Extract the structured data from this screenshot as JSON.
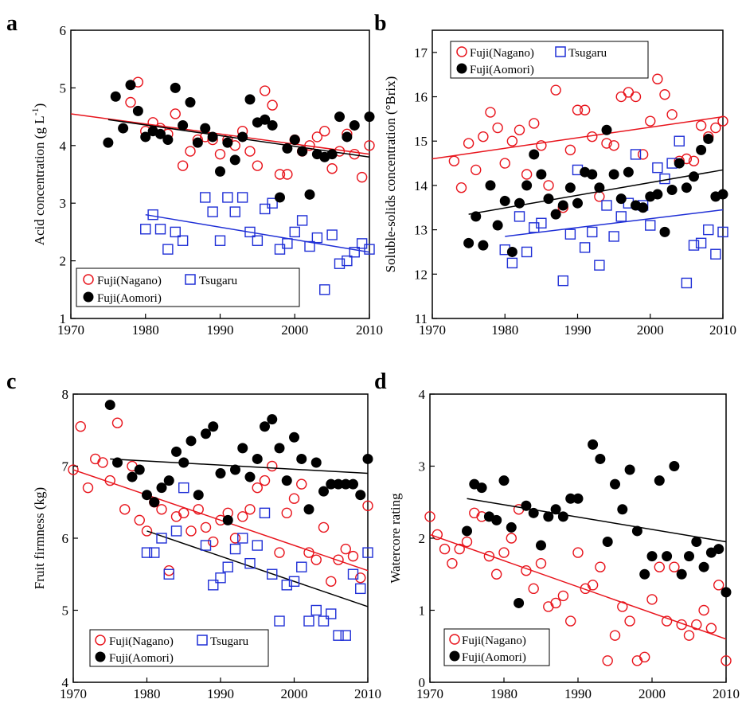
{
  "colors": {
    "nagano": "#e8141c",
    "tsugaru": "#1f2fd6",
    "aomori": "#000000",
    "trend_black": "#000000"
  },
  "chart_data": [
    {
      "panel": "a",
      "type": "scatter",
      "ylabel": "Acid concentration (g L",
      "ylabel_sup": "-1",
      "ylabel_close": ")",
      "xlim": [
        1970,
        2010
      ],
      "ylim": [
        1,
        6
      ],
      "xticks": [
        "1970",
        "1980",
        "1990",
        "2000",
        "2010"
      ],
      "yticks": [
        "1",
        "2",
        "3",
        "4",
        "5",
        "6"
      ],
      "legend": {
        "entries": [
          "Fuji(Nagano)",
          "Tsugaru",
          "Fuji(Aomori)"
        ],
        "placement": "bottom-left"
      },
      "series": [
        {
          "name": "Fuji(Nagano)",
          "marker": "open-circle",
          "color": "#e8141c",
          "x": [
            1978,
            1979,
            1980,
            1981,
            1982,
            1983,
            1984,
            1985,
            1986,
            1987,
            1988,
            1989,
            1990,
            1991,
            1992,
            1993,
            1994,
            1995,
            1996,
            1997,
            1998,
            1999,
            2000,
            2001,
            2002,
            2003,
            2004,
            2005,
            2006,
            2007,
            2008,
            2009,
            2010
          ],
          "y": [
            4.75,
            5.1,
            4.25,
            4.4,
            4.3,
            4.2,
            4.55,
            3.65,
            3.9,
            4.1,
            4.15,
            4.1,
            3.85,
            4.1,
            4.0,
            4.25,
            3.9,
            3.65,
            4.95,
            4.7,
            3.5,
            3.5,
            4.1,
            3.9,
            4.0,
            4.15,
            4.25,
            3.6,
            3.9,
            4.2,
            3.85,
            3.45,
            4.0
          ],
          "trend": [
            [
              1970,
              4.55
            ],
            [
              2010,
              3.85
            ]
          ]
        },
        {
          "name": "Tsugaru",
          "marker": "open-square",
          "color": "#1f2fd6",
          "x": [
            1980,
            1981,
            1982,
            1983,
            1984,
            1985,
            1988,
            1989,
            1990,
            1991,
            1992,
            1993,
            1994,
            1995,
            1996,
            1997,
            1998,
            1999,
            2000,
            2001,
            2002,
            2003,
            2004,
            2005,
            2006,
            2007,
            2008,
            2009,
            2010
          ],
          "y": [
            2.55,
            2.8,
            2.55,
            2.2,
            2.5,
            2.35,
            3.1,
            2.85,
            2.35,
            3.1,
            2.85,
            3.1,
            2.5,
            2.35,
            2.9,
            3.0,
            2.2,
            2.3,
            2.5,
            2.7,
            2.25,
            2.4,
            1.5,
            2.45,
            1.95,
            2.0,
            2.15,
            2.3,
            2.2
          ],
          "trend": [
            [
              1980,
              2.8
            ],
            [
              2010,
              2.15
            ]
          ]
        },
        {
          "name": "Fuji(Aomori)",
          "marker": "filled-circle",
          "color": "#000000",
          "x": [
            1975,
            1976,
            1977,
            1978,
            1979,
            1980,
            1981,
            1982,
            1983,
            1984,
            1985,
            1986,
            1987,
            1988,
            1989,
            1990,
            1991,
            1992,
            1993,
            1994,
            1995,
            1996,
            1997,
            1998,
            1999,
            2000,
            2001,
            2002,
            2003,
            2004,
            2005,
            2006,
            2007,
            2008,
            2010
          ],
          "y": [
            4.05,
            4.85,
            4.3,
            5.05,
            4.6,
            4.15,
            4.25,
            4.2,
            4.1,
            5.0,
            4.35,
            4.75,
            4.05,
            4.3,
            4.15,
            3.55,
            4.05,
            3.75,
            4.15,
            4.8,
            4.4,
            4.45,
            4.35,
            3.1,
            3.95,
            4.1,
            3.9,
            3.15,
            3.85,
            3.8,
            3.85,
            4.5,
            4.15,
            4.35,
            4.5
          ],
          "trend": [
            [
              1975,
              4.45
            ],
            [
              2010,
              3.8
            ]
          ]
        }
      ]
    },
    {
      "panel": "b",
      "type": "scatter",
      "ylabel": "Soluble-solids concentration (°Brix)",
      "xlim": [
        1970,
        2010
      ],
      "ylim": [
        11,
        17.5
      ],
      "xticks": [
        "1970",
        "1980",
        "1990",
        "2000",
        "2010"
      ],
      "yticks": [
        "11",
        "12",
        "13",
        "14",
        "15",
        "16",
        "17"
      ],
      "legend": {
        "entries": [
          "Fuji(Nagano)",
          "Tsugaru",
          "Fuji(Aomori)"
        ],
        "placement": "top-left"
      },
      "series": [
        {
          "name": "Fuji(Nagano)",
          "marker": "open-circle",
          "color": "#e8141c",
          "x": [
            1973,
            1974,
            1975,
            1976,
            1977,
            1978,
            1979,
            1980,
            1981,
            1982,
            1983,
            1984,
            1985,
            1986,
            1987,
            1988,
            1989,
            1990,
            1991,
            1992,
            1993,
            1994,
            1995,
            1996,
            1997,
            1998,
            1999,
            2000,
            2001,
            2002,
            2003,
            2004,
            2005,
            2006,
            2007,
            2008,
            2009,
            2010
          ],
          "y": [
            14.55,
            13.95,
            14.95,
            14.35,
            15.1,
            15.65,
            15.3,
            14.5,
            15.0,
            15.25,
            14.25,
            15.4,
            14.9,
            14.0,
            16.15,
            13.5,
            14.8,
            15.7,
            15.7,
            15.1,
            13.75,
            14.95,
            14.9,
            16.0,
            16.1,
            16.0,
            14.7,
            15.45,
            16.4,
            16.05,
            15.6,
            14.55,
            14.6,
            14.55,
            15.35,
            15.1,
            15.3,
            15.45
          ],
          "trend": [
            [
              1970,
              14.6
            ],
            [
              2010,
              15.55
            ]
          ]
        },
        {
          "name": "Tsugaru",
          "marker": "open-square",
          "color": "#1f2fd6",
          "x": [
            1980,
            1981,
            1982,
            1983,
            1984,
            1985,
            1988,
            1989,
            1990,
            1991,
            1992,
            1993,
            1994,
            1995,
            1996,
            1997,
            1998,
            1999,
            2000,
            2001,
            2002,
            2003,
            2004,
            2005,
            2006,
            2007,
            2008,
            2009,
            2010
          ],
          "y": [
            12.55,
            12.25,
            13.3,
            12.5,
            13.05,
            13.15,
            11.85,
            12.9,
            14.35,
            12.6,
            12.95,
            12.2,
            13.55,
            12.85,
            13.3,
            13.6,
            14.7,
            13.55,
            13.1,
            14.4,
            14.15,
            14.5,
            15.0,
            11.8,
            12.65,
            12.7,
            13.0,
            12.45,
            12.95
          ],
          "trend": [
            [
              1980,
              12.85
            ],
            [
              2010,
              13.45
            ]
          ]
        },
        {
          "name": "Fuji(Aomori)",
          "marker": "filled-circle",
          "color": "#000000",
          "x": [
            1975,
            1976,
            1977,
            1978,
            1979,
            1980,
            1981,
            1982,
            1983,
            1984,
            1985,
            1986,
            1987,
            1988,
            1989,
            1990,
            1991,
            1992,
            1993,
            1994,
            1995,
            1996,
            1997,
            1998,
            1999,
            2000,
            2001,
            2002,
            2003,
            2004,
            2005,
            2006,
            2007,
            2008,
            2009,
            2010
          ],
          "y": [
            12.7,
            13.3,
            12.65,
            14.0,
            13.1,
            13.65,
            12.5,
            13.6,
            14.0,
            14.7,
            14.25,
            13.7,
            13.35,
            13.55,
            13.95,
            13.6,
            14.3,
            14.25,
            13.95,
            15.25,
            14.25,
            13.7,
            14.3,
            13.55,
            13.5,
            13.75,
            13.8,
            12.95,
            13.9,
            14.5,
            13.95,
            14.2,
            14.8,
            15.05,
            13.75,
            13.8
          ],
          "trend": [
            [
              1975,
              13.35
            ],
            [
              2010,
              14.35
            ]
          ]
        }
      ]
    },
    {
      "panel": "c",
      "type": "scatter",
      "ylabel": "Fruit firmness (kg)",
      "xlim": [
        1970,
        2010
      ],
      "ylim": [
        4,
        8
      ],
      "xticks": [
        "1970",
        "1980",
        "1990",
        "2000",
        "2010"
      ],
      "yticks": [
        "4",
        "5",
        "6",
        "7",
        "8"
      ],
      "legend": {
        "entries": [
          "Fuji(Nagano)",
          "Tsugaru",
          "Fuji(Aomori)"
        ],
        "placement": "bottom-left"
      },
      "series": [
        {
          "name": "Fuji(Nagano)",
          "marker": "open-circle",
          "color": "#e8141c",
          "x": [
            1970,
            1971,
            1972,
            1973,
            1974,
            1975,
            1976,
            1977,
            1978,
            1979,
            1980,
            1981,
            1982,
            1983,
            1984,
            1985,
            1986,
            1987,
            1988,
            1989,
            1990,
            1991,
            1992,
            1993,
            1994,
            1995,
            1996,
            1997,
            1998,
            1999,
            2000,
            2001,
            2002,
            2003,
            2004,
            2005,
            2006,
            2007,
            2008,
            2009,
            2010
          ],
          "y": [
            6.95,
            7.55,
            6.7,
            7.1,
            7.05,
            6.8,
            7.6,
            6.4,
            7.0,
            6.25,
            6.1,
            6.5,
            6.4,
            5.55,
            6.3,
            6.35,
            6.1,
            6.4,
            6.15,
            5.95,
            6.25,
            6.35,
            6.0,
            6.3,
            6.4,
            6.7,
            6.8,
            7.0,
            5.8,
            6.35,
            6.55,
            6.75,
            5.8,
            5.7,
            6.15,
            5.4,
            5.7,
            5.85,
            5.75,
            5.45,
            6.45
          ],
          "trend": [
            [
              1970,
              6.95
            ],
            [
              2010,
              5.55
            ]
          ]
        },
        {
          "name": "Tsugaru",
          "marker": "open-square",
          "color": "#1f2fd6",
          "x": [
            1980,
            1981,
            1982,
            1983,
            1984,
            1985,
            1988,
            1989,
            1990,
            1991,
            1992,
            1993,
            1994,
            1995,
            1996,
            1997,
            1998,
            1999,
            2000,
            2001,
            2002,
            2003,
            2004,
            2005,
            2006,
            2007,
            2008,
            2009,
            2010
          ],
          "y": [
            5.8,
            5.8,
            6.0,
            5.5,
            6.1,
            6.7,
            5.9,
            5.35,
            5.45,
            5.6,
            5.85,
            6.0,
            5.65,
            5.9,
            6.35,
            5.5,
            4.85,
            5.35,
            5.4,
            5.6,
            4.85,
            5.0,
            4.85,
            4.95,
            4.65,
            4.65,
            5.5,
            5.3,
            5.8
          ],
          "trend": [
            [
              1980,
              6.1
            ],
            [
              2010,
              5.05
            ]
          ]
        },
        {
          "name": "Fuji(Aomori)",
          "marker": "filled-circle",
          "color": "#000000",
          "x": [
            1975,
            1976,
            1978,
            1979,
            1980,
            1981,
            1982,
            1983,
            1984,
            1985,
            1986,
            1987,
            1988,
            1989,
            1990,
            1991,
            1992,
            1993,
            1994,
            1995,
            1996,
            1997,
            1998,
            1999,
            2000,
            2001,
            2002,
            2003,
            2004,
            2005,
            2006,
            2007,
            2008,
            2009,
            2010
          ],
          "y": [
            7.85,
            7.05,
            6.85,
            6.95,
            6.6,
            6.5,
            6.7,
            6.8,
            7.2,
            7.05,
            7.35,
            6.6,
            7.45,
            7.55,
            6.9,
            6.25,
            6.95,
            7.25,
            6.85,
            7.1,
            7.55,
            7.65,
            7.25,
            6.8,
            7.4,
            7.1,
            6.4,
            7.05,
            6.65,
            6.75,
            6.75,
            6.75,
            6.75,
            6.6,
            7.1
          ],
          "trend": [
            [
              1975,
              7.1
            ],
            [
              2010,
              6.9
            ]
          ]
        }
      ]
    },
    {
      "panel": "d",
      "type": "scatter",
      "ylabel": "Watercore rating",
      "xlim": [
        1970,
        2010
      ],
      "ylim": [
        0,
        4
      ],
      "xticks": [
        "1970",
        "1980",
        "1990",
        "2000",
        "2010"
      ],
      "yticks": [
        "0",
        "1",
        "2",
        "3",
        "4"
      ],
      "legend": {
        "entries": [
          "Fuji(Nagano)",
          "Fuji(Aomori)"
        ],
        "placement": "bottom-left"
      },
      "series": [
        {
          "name": "Fuji(Nagano)",
          "marker": "open-circle",
          "color": "#e8141c",
          "x": [
            1970,
            1971,
            1972,
            1973,
            1974,
            1975,
            1976,
            1977,
            1978,
            1979,
            1980,
            1981,
            1982,
            1983,
            1984,
            1985,
            1986,
            1987,
            1988,
            1989,
            1990,
            1991,
            1992,
            1993,
            1994,
            1995,
            1996,
            1997,
            1998,
            1999,
            2000,
            2001,
            2002,
            2003,
            2004,
            2005,
            2006,
            2007,
            2008,
            2009,
            2010
          ],
          "y": [
            2.3,
            2.05,
            1.85,
            1.65,
            1.85,
            1.95,
            2.35,
            2.3,
            1.75,
            1.5,
            1.8,
            2.0,
            2.4,
            1.55,
            1.3,
            1.65,
            1.05,
            1.1,
            1.2,
            0.85,
            1.8,
            1.3,
            1.35,
            1.6,
            0.3,
            0.65,
            1.05,
            0.85,
            0.3,
            0.35,
            1.15,
            1.6,
            0.85,
            1.6,
            0.8,
            0.65,
            0.8,
            1.0,
            0.75,
            1.35,
            0.3
          ],
          "trend": [
            [
              1970,
              2.05
            ],
            [
              2010,
              0.6
            ]
          ]
        },
        {
          "name": "Fuji(Aomori)",
          "marker": "filled-circle",
          "color": "#000000",
          "x": [
            1975,
            1976,
            1977,
            1978,
            1979,
            1980,
            1981,
            1982,
            1983,
            1984,
            1985,
            1986,
            1987,
            1988,
            1989,
            1990,
            1992,
            1993,
            1994,
            1995,
            1996,
            1997,
            1998,
            1999,
            2000,
            2001,
            2002,
            2003,
            2004,
            2005,
            2006,
            2007,
            2008,
            2009,
            2010
          ],
          "y": [
            2.1,
            2.75,
            2.7,
            2.3,
            2.25,
            2.8,
            2.15,
            1.1,
            2.45,
            2.35,
            1.9,
            2.3,
            2.4,
            2.3,
            2.55,
            2.55,
            3.3,
            3.1,
            1.95,
            2.75,
            2.4,
            2.95,
            2.1,
            1.5,
            1.75,
            2.8,
            1.75,
            3.0,
            1.5,
            1.75,
            1.95,
            1.6,
            1.8,
            1.85,
            1.25
          ],
          "trend": [
            [
              1975,
              2.55
            ],
            [
              2010,
              1.95
            ]
          ]
        }
      ]
    }
  ]
}
